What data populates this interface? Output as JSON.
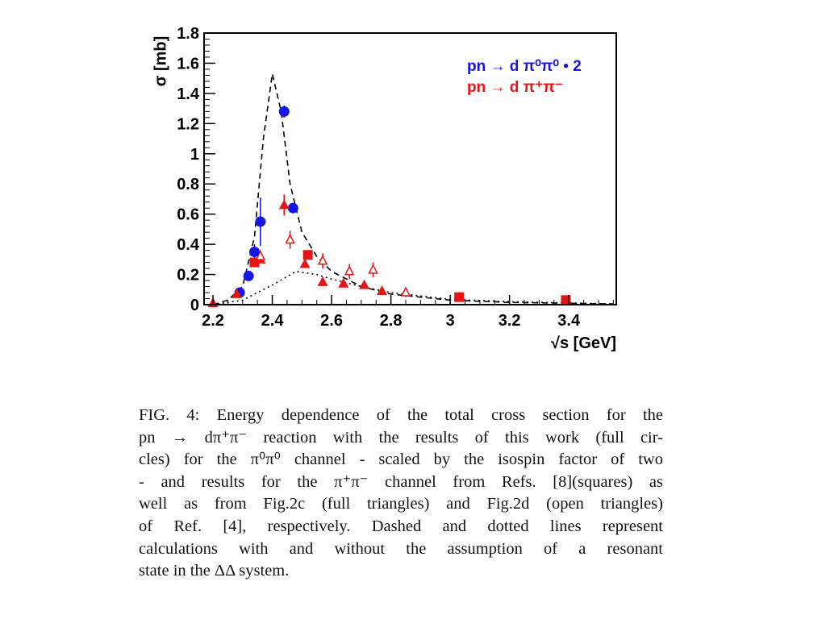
{
  "chart_data": {
    "type": "scatter",
    "title": "",
    "xlabel": "√s [GeV]",
    "ylabel": "σ [mb]",
    "xlim": [
      2.17,
      3.56
    ],
    "ylim": [
      0,
      1.8
    ],
    "x_ticks": [
      "2.2",
      "2.4",
      "2.6",
      "2.8",
      "3",
      "3.2",
      "3.4"
    ],
    "y_ticks": [
      "0",
      "0.2",
      "0.4",
      "0.6",
      "0.8",
      "1",
      "1.2",
      "1.4",
      "1.6",
      "1.8"
    ],
    "legend_position": "top-right",
    "series": [
      {
        "name": "pn → d π⁰π⁰ • 2",
        "marker": "circle",
        "color": "#1515e6",
        "points": [
          {
            "x": 2.29,
            "y": 0.08,
            "err": 0.02
          },
          {
            "x": 2.32,
            "y": 0.19,
            "err": 0.03
          },
          {
            "x": 2.34,
            "y": 0.35,
            "err": 0.05
          },
          {
            "x": 2.36,
            "y": 0.55,
            "err": 0.16
          },
          {
            "x": 2.44,
            "y": 1.28,
            "err": 0.04
          },
          {
            "x": 2.47,
            "y": 0.64,
            "err": 0.03
          }
        ]
      },
      {
        "name": "pn → d π⁺π⁻",
        "marker": "square",
        "color": "#e61515",
        "points": [
          {
            "x": 2.34,
            "y": 0.28
          },
          {
            "x": 2.52,
            "y": 0.33
          },
          {
            "x": 3.03,
            "y": 0.05
          },
          {
            "x": 3.39,
            "y": 0.03
          }
        ]
      },
      {
        "name": "",
        "marker": "triangle",
        "color": "#e61515",
        "points": [
          {
            "x": 2.2,
            "y": 0.01
          },
          {
            "x": 2.28,
            "y": 0.07
          },
          {
            "x": 2.36,
            "y": 0.3
          },
          {
            "x": 2.44,
            "y": 0.66,
            "err": 0.07
          },
          {
            "x": 2.51,
            "y": 0.27
          },
          {
            "x": 2.57,
            "y": 0.15
          },
          {
            "x": 2.64,
            "y": 0.14
          },
          {
            "x": 2.71,
            "y": 0.13
          },
          {
            "x": 2.77,
            "y": 0.09
          }
        ]
      },
      {
        "name": "",
        "marker": "triangle-open",
        "color": "#e61515",
        "points": [
          {
            "x": 2.36,
            "y": 0.32,
            "err": 0.04
          },
          {
            "x": 2.46,
            "y": 0.43,
            "err": 0.06
          },
          {
            "x": 2.57,
            "y": 0.29,
            "err": 0.05
          },
          {
            "x": 2.66,
            "y": 0.22,
            "err": 0.05
          },
          {
            "x": 2.74,
            "y": 0.23,
            "err": 0.05
          },
          {
            "x": 2.85,
            "y": 0.08,
            "err": 0.03
          }
        ]
      },
      {
        "name": "",
        "line": "dashed",
        "color": "#000000",
        "points": [
          {
            "x": 2.2,
            "y": 0
          },
          {
            "x": 2.25,
            "y": 0.03
          },
          {
            "x": 2.3,
            "y": 0.12
          },
          {
            "x": 2.34,
            "y": 0.45
          },
          {
            "x": 2.37,
            "y": 1.1
          },
          {
            "x": 2.4,
            "y": 1.53
          },
          {
            "x": 2.43,
            "y": 1.28
          },
          {
            "x": 2.46,
            "y": 0.8
          },
          {
            "x": 2.5,
            "y": 0.48
          },
          {
            "x": 2.55,
            "y": 0.32
          },
          {
            "x": 2.6,
            "y": 0.22
          },
          {
            "x": 2.7,
            "y": 0.12
          },
          {
            "x": 2.8,
            "y": 0.07
          },
          {
            "x": 3.0,
            "y": 0.03
          },
          {
            "x": 3.2,
            "y": 0.015
          },
          {
            "x": 3.55,
            "y": 0.005
          }
        ]
      },
      {
        "name": "",
        "line": "dotted",
        "color": "#000000",
        "points": [
          {
            "x": 2.2,
            "y": 0
          },
          {
            "x": 2.3,
            "y": 0.03
          },
          {
            "x": 2.4,
            "y": 0.13
          },
          {
            "x": 2.48,
            "y": 0.22
          },
          {
            "x": 2.55,
            "y": 0.2
          },
          {
            "x": 2.6,
            "y": 0.17
          },
          {
            "x": 2.7,
            "y": 0.12
          },
          {
            "x": 2.8,
            "y": 0.08
          },
          {
            "x": 3.0,
            "y": 0.035
          },
          {
            "x": 3.2,
            "y": 0.02
          },
          {
            "x": 3.55,
            "y": 0.005
          }
        ]
      }
    ]
  },
  "caption": {
    "lines": [
      "FIG. 4: Energy dependence of the total cross section for the",
      "pn → dπ⁺π⁻ reaction with the results of this work (full cir-",
      "cles) for the π⁰π⁰ channel - scaled by the isospin factor of two",
      "- and results for the π⁺π⁻ channel from Refs. [8](squares) as",
      "well as from Fig.2c (full triangles) and Fig.2d (open triangles)",
      "of Ref. [4], respectively. Dashed and dotted lines represent",
      "calculations with and without the assumption of a resonant",
      "state in the ΔΔ system."
    ]
  }
}
